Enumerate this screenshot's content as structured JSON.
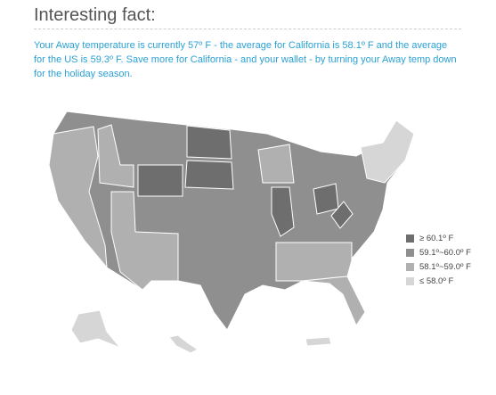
{
  "header": {
    "title": "Interesting fact:"
  },
  "message": "Your Away temperature is currently 57º F - the average for California is 58.1º F and the average for the US is 59.3º F. Save more for California - and your wallet - by turning your Away temp down for the holiday season.",
  "legend": [
    {
      "label": "≥ 60.1º F",
      "color": "#6e6e6e"
    },
    {
      "label": "59.1º~60.0º F",
      "color": "#8f8f8f"
    },
    {
      "label": "58.1º~59.0º F",
      "color": "#b0b0b0"
    },
    {
      "label": "≤ 58.0º F",
      "color": "#d6d6d6"
    }
  ]
}
